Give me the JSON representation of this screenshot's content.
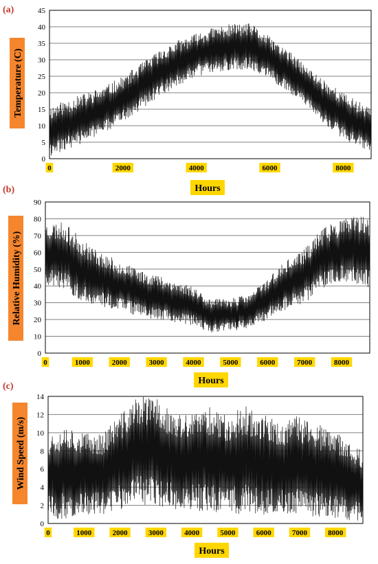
{
  "colors": {
    "label_bg_yellow": "#ffd700",
    "label_bg_orange": "#f5862e",
    "panel_letter": "#c0392b",
    "series": "#111111",
    "grid": "#808080"
  },
  "chart_data": [
    {
      "panel": "(a)",
      "type": "line",
      "xlabel": "Hours",
      "ylabel": "Temperature (C)",
      "xlim": [
        0,
        8760
      ],
      "ylim": [
        0,
        45
      ],
      "xticks": [
        "0",
        "2000",
        "4000",
        "6000",
        "8000"
      ],
      "yticks": [
        "0",
        "5",
        "10",
        "15",
        "20",
        "25",
        "30",
        "35",
        "40",
        "45"
      ],
      "grid": true,
      "series": [
        {
          "x": [
            0,
            500,
            1000,
            1500,
            2000,
            2500,
            3000,
            3500,
            4000,
            4500,
            5000,
            5500,
            6000,
            6500,
            7000,
            7500,
            8000,
            8500,
            8760
          ],
          "upper": [
            16,
            18,
            20,
            22,
            25,
            29,
            33,
            36,
            38,
            40,
            41,
            41,
            37,
            33,
            28,
            24,
            20,
            17,
            16
          ],
          "lower": [
            0,
            3,
            5,
            8,
            11,
            15,
            19,
            22,
            25,
            26,
            27,
            27,
            24,
            20,
            16,
            10,
            6,
            3,
            2
          ]
        }
      ]
    },
    {
      "panel": "(b)",
      "type": "line",
      "xlabel": "Hours",
      "ylabel": "Relative Humidity (%)",
      "xlim": [
        0,
        8760
      ],
      "ylim": [
        0,
        90
      ],
      "xticks": [
        "0",
        "1000",
        "2000",
        "3000",
        "4000",
        "5000",
        "6000",
        "7000",
        "8000"
      ],
      "yticks": [
        "0",
        "10",
        "20",
        "30",
        "40",
        "50",
        "60",
        "70",
        "80",
        "90"
      ],
      "grid": true,
      "series": [
        {
          "x": [
            0,
            500,
            1000,
            1500,
            2000,
            2500,
            3000,
            3500,
            4000,
            4500,
            5000,
            5500,
            6000,
            6500,
            7000,
            7500,
            8000,
            8500,
            8760
          ],
          "upper": [
            78,
            78,
            68,
            60,
            55,
            50,
            47,
            43,
            40,
            32,
            33,
            35,
            45,
            55,
            62,
            75,
            80,
            82,
            80
          ],
          "lower": [
            40,
            38,
            30,
            28,
            25,
            22,
            20,
            18,
            16,
            12,
            13,
            15,
            20,
            26,
            30,
            38,
            42,
            40,
            38
          ]
        }
      ]
    },
    {
      "panel": "(c)",
      "type": "line",
      "xlabel": "Hours",
      "ylabel": "Wind Speed (m/s)",
      "xlim": [
        0,
        8760
      ],
      "ylim": [
        0,
        14
      ],
      "xticks": [
        "0",
        "1000",
        "2000",
        "3000",
        "4000",
        "5000",
        "6000",
        "7000",
        "8000"
      ],
      "yticks": [
        "0",
        "2",
        "4",
        "6",
        "8",
        "10",
        "12",
        "14"
      ],
      "grid": true,
      "series": [
        {
          "x": [
            0,
            500,
            1000,
            1500,
            2000,
            2500,
            3000,
            3500,
            4000,
            4500,
            5000,
            5500,
            6000,
            6500,
            7000,
            7500,
            8000,
            8500,
            8760
          ],
          "upper": [
            10,
            11,
            10,
            10,
            12,
            14,
            14,
            12,
            12,
            13,
            12,
            13,
            12,
            11,
            12,
            11,
            10,
            9,
            8
          ],
          "lower": [
            0.5,
            0.5,
            1,
            1,
            1.5,
            2,
            2,
            1.5,
            1.5,
            1,
            1,
            1,
            1,
            1,
            0.8,
            0.5,
            0.5,
            0.3,
            0.3
          ]
        }
      ]
    }
  ]
}
